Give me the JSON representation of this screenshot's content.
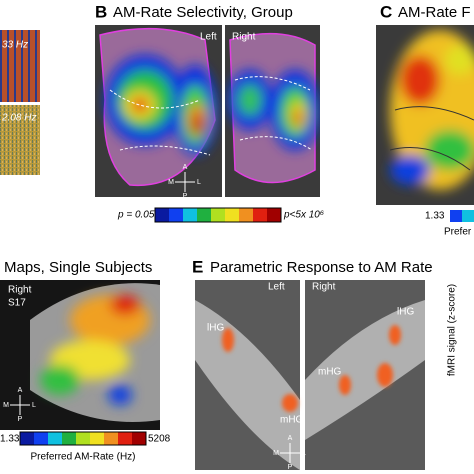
{
  "stimuli": {
    "fast": "33 Hz",
    "slow": "2.08 Hz"
  },
  "panel_b": {
    "letter": "B",
    "title": "AM-Rate Selectivity, Group",
    "left": "Left",
    "right": "Right",
    "scale_min": "p = 0.05",
    "scale_max": "p<5x 10⁶"
  },
  "panel_c": {
    "letter": "C",
    "title": "AM-Rate F",
    "scale_min": "1.33",
    "scale_label": "Prefer"
  },
  "panel_d": {
    "title": "Maps, Single Subjects",
    "hemisphere": "Right",
    "subject": "S17",
    "scale_min": "1.33",
    "scale_max": "5208",
    "scale_label": "Preferred AM-Rate (Hz)"
  },
  "panel_e": {
    "letter": "E",
    "title": "Parametric Response to AM Rate",
    "left": "Left",
    "right": "Right",
    "left_labels": [
      "lHG",
      "mHG"
    ],
    "right_labels": [
      "mHG",
      "lHG"
    ],
    "y_axis": "fMRI signal (z-score)"
  },
  "compass": {
    "up": "A",
    "down": "P",
    "left": "M",
    "right": "L"
  }
}
